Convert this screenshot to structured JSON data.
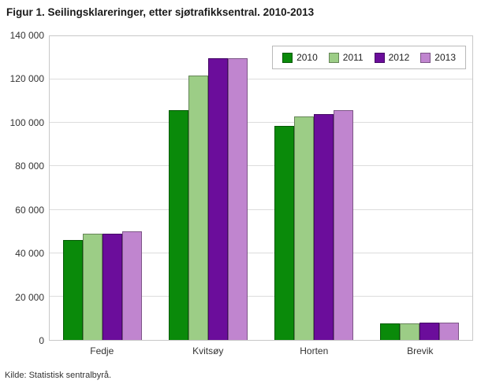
{
  "title": "Figur 1. Seilingsklareringer, etter sjøtrafikksentral. 2010-2013",
  "source": "Kilde: Statistisk sentralbyrå.",
  "chart_data": {
    "type": "bar",
    "categories": [
      "Fedje",
      "Kvitsøy",
      "Horten",
      "Brevik"
    ],
    "series": [
      {
        "name": "2010",
        "color": "#0a8a0a",
        "values": [
          46000,
          106000,
          98500,
          7500
        ]
      },
      {
        "name": "2011",
        "color": "#9ccd86",
        "values": [
          49000,
          122000,
          103000,
          7500
        ]
      },
      {
        "name": "2012",
        "color": "#6b0d9b",
        "values": [
          49000,
          130000,
          104000,
          8000
        ]
      },
      {
        "name": "2013",
        "color": "#c085cf",
        "values": [
          50000,
          130000,
          106000,
          8000
        ]
      }
    ],
    "ylim": [
      0,
      140000
    ],
    "ytick_step": 20000,
    "ytick_labels": [
      "0",
      "20 000",
      "40 000",
      "60 000",
      "80 000",
      "100 000",
      "120 000",
      "140 000"
    ],
    "xlabel": "",
    "ylabel": "",
    "grid": true,
    "legend_position": "top-right"
  }
}
